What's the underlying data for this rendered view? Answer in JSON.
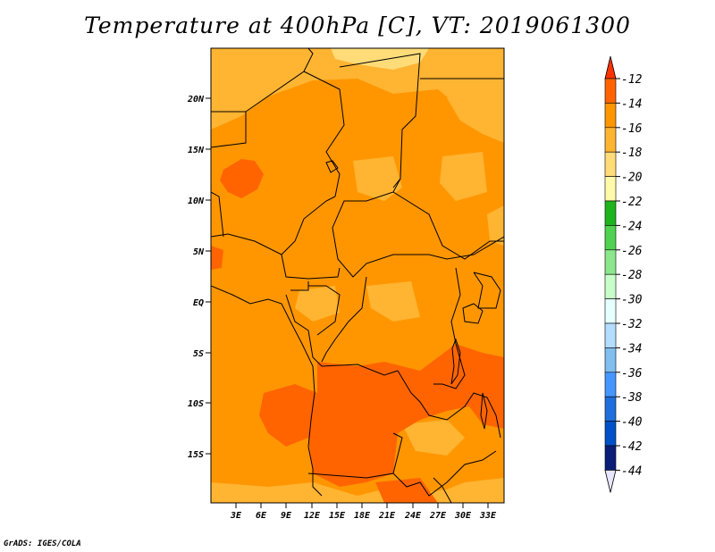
{
  "title": "Temperature at 400hPa [C], VT: 2019061300",
  "credit": "GrADS: IGES/COLA",
  "map": {
    "region": "Central Africa",
    "lon_range": [
      0,
      34
    ],
    "lat_range": [
      -20,
      25
    ],
    "lat_labels": [
      "20N",
      "15N",
      "10N",
      "5N",
      "EQ",
      "5S",
      "10S",
      "15S"
    ],
    "lon_labels": [
      "3E",
      "6E",
      "9E",
      "12E",
      "15E",
      "18E",
      "21E",
      "24E",
      "27E",
      "30E",
      "33E"
    ]
  },
  "colorbar": {
    "labels": [
      "-12",
      "-14",
      "-16",
      "-18",
      "-20",
      "-22",
      "-24",
      "-26",
      "-28",
      "-30",
      "-32",
      "-34",
      "-36",
      "-38",
      "-40",
      "-42",
      "-44"
    ],
    "colors": [
      "#ff3200",
      "#ff6400",
      "#ff9600",
      "#ffb432",
      "#ffdc78",
      "#fffaaa",
      "#1eb41e",
      "#50d250",
      "#8ce68c",
      "#c8ffc8",
      "#e6ffff",
      "#b4dcff",
      "#82bef0",
      "#4696ff",
      "#1e6edc",
      "#0050c8",
      "#0a1e78"
    ]
  },
  "colors": {
    "dominant": "#ff9600",
    "warm": "#ff6400",
    "cool": "#ffb432",
    "coolest": "#ffdc78",
    "border": "#000000"
  }
}
